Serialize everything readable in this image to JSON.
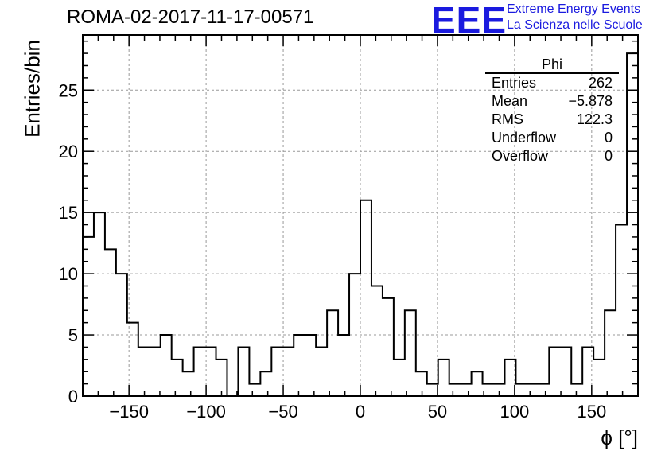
{
  "header": {
    "title": "ROMA-02-2017-11-17-00571",
    "logo_text": "EEE",
    "logo_line1": "Extreme Energy Events",
    "logo_line2": "La Scienza nelle Scuole"
  },
  "stats_box": {
    "title": "Phi",
    "rows": [
      {
        "label": "Entries",
        "value": "262"
      },
      {
        "label": "Mean",
        "value": "−5.878"
      },
      {
        "label": "RMS",
        "value": "122.3"
      },
      {
        "label": "Underflow",
        "value": "0"
      },
      {
        "label": "Overflow",
        "value": "0"
      }
    ]
  },
  "colors": {
    "logo": "#1a1adf",
    "line": "#000000",
    "grid": "#999999"
  },
  "chart_data": {
    "type": "bar",
    "style": "step-histogram",
    "title": "ROMA-02-2017-11-17-00571",
    "xlabel": "ϕ [°]",
    "ylabel": "Entries/bin",
    "xlim": [
      -180,
      180
    ],
    "ylim": [
      0,
      29.5
    ],
    "bin_width": 7.2,
    "xticks": [
      -150,
      -100,
      -50,
      0,
      50,
      100,
      150
    ],
    "xtick_labels": [
      "−150",
      "−100",
      "−50",
      "0",
      "50",
      "100",
      "150"
    ],
    "yticks": [
      0,
      5,
      10,
      15,
      20,
      25
    ],
    "ytick_labels": [
      "0",
      "5",
      "10",
      "15",
      "20",
      "25"
    ],
    "grid": true,
    "values": [
      13,
      15,
      12,
      10,
      6,
      4,
      4,
      5,
      3,
      2,
      4,
      4,
      3,
      0,
      4,
      1,
      2,
      4,
      4,
      5,
      5,
      4,
      7,
      5,
      10,
      16,
      9,
      8,
      3,
      7,
      2,
      1,
      3,
      1,
      1,
      2,
      1,
      1,
      3,
      1,
      1,
      1,
      4,
      4,
      1,
      4,
      3,
      7,
      14,
      28
    ]
  }
}
